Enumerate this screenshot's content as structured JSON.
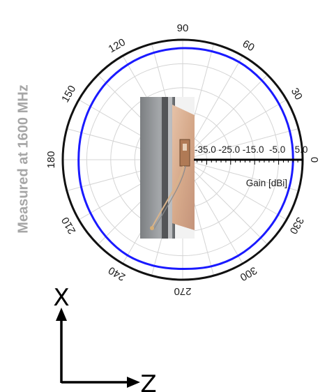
{
  "chart_data": {
    "type": "polar",
    "side_title": "Measured at 1600 MHz",
    "radial_axis_label": "Gain [dBi]",
    "radial_tick_labels": [
      "-35.0",
      "-25.0",
      "-15.0",
      "-5.0",
      "5.0"
    ],
    "radial_range": [
      -45,
      5
    ],
    "radial_rings": [
      -35,
      -25,
      -15,
      -5,
      5
    ],
    "angle_tick_labels": [
      {
        "angle": 0,
        "label": "0"
      },
      {
        "angle": 30,
        "label": "30"
      },
      {
        "angle": 60,
        "label": "60"
      },
      {
        "angle": 90,
        "label": "90"
      },
      {
        "angle": 120,
        "label": "120"
      },
      {
        "angle": 150,
        "label": "150"
      },
      {
        "angle": 180,
        "label": "180"
      },
      {
        "angle": 210,
        "label": "210"
      },
      {
        "angle": 240,
        "label": "240"
      },
      {
        "angle": 270,
        "label": "270"
      },
      {
        "angle": 300,
        "label": "300"
      },
      {
        "angle": 330,
        "label": "330"
      }
    ],
    "grid": true,
    "series": [
      {
        "color": "#1a1aff",
        "angle_deg": [
          0,
          15,
          30,
          45,
          60,
          75,
          90,
          105,
          120,
          135,
          150,
          165,
          180,
          195,
          210,
          225,
          240,
          255,
          270,
          285,
          300,
          315,
          330,
          345
        ],
        "gain_dbi": [
          1.0,
          1.2,
          1.4,
          1.7,
          2.0,
          1.8,
          1.5,
          1.2,
          0.8,
          0.2,
          -0.6,
          -1.3,
          -1.6,
          -1.2,
          -0.6,
          0.3,
          1.0,
          0.8,
          0.5,
          1.0,
          1.2,
          1.0,
          0.9,
          0.9
        ]
      }
    ]
  },
  "photo": {
    "description_name": "antenna-prototype-photo"
  },
  "coordinate_axes": {
    "vertical_label": "X",
    "horizontal_label": "Z"
  }
}
